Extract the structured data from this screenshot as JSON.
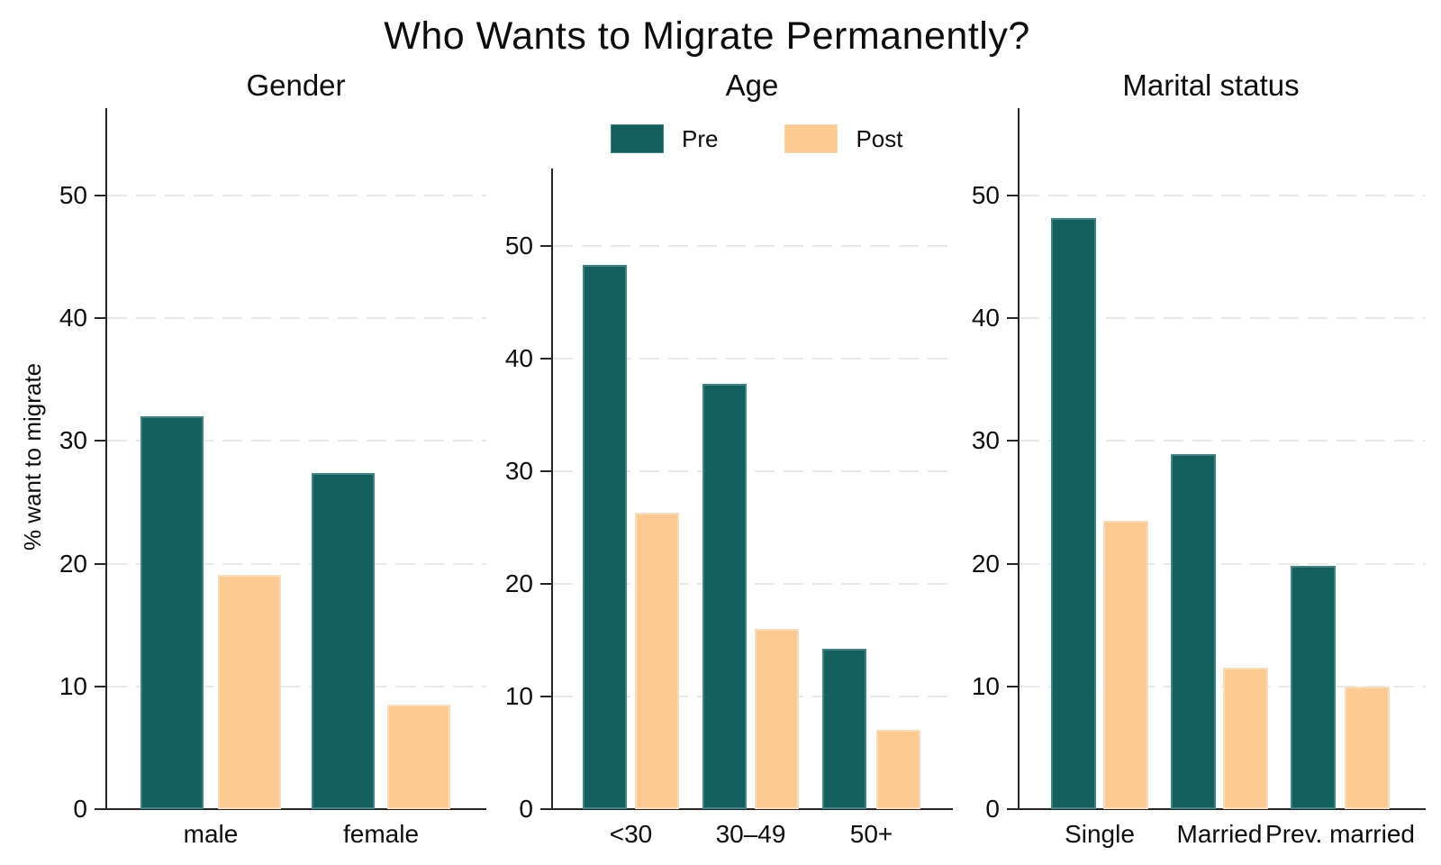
{
  "chart_data": {
    "type": "bar",
    "title": "Who Wants to Migrate Permanently?",
    "ylabel": "% want to migrate",
    "legend_position": "top-center",
    "grid": true,
    "yticks": [
      0,
      10,
      20,
      30,
      40,
      50
    ],
    "ylim": [
      0,
      57
    ],
    "series_names": [
      "Pre",
      "Post"
    ],
    "series_colors": [
      "#14605F",
      "#FDCA92"
    ],
    "grid_color": "#E9E9E9",
    "axis_color": "#262626",
    "panels": [
      {
        "title": "Gender",
        "categories": [
          "male",
          "female"
        ],
        "series": [
          {
            "name": "Pre",
            "values": [
              32.0,
              27.4
            ]
          },
          {
            "name": "Post",
            "values": [
              19.1,
              8.5
            ]
          }
        ]
      },
      {
        "title": "Age",
        "categories": [
          "<30",
          "30–49",
          "50+"
        ],
        "series": [
          {
            "name": "Pre",
            "values": [
              48.3,
              37.8,
              14.2
            ]
          },
          {
            "name": "Post",
            "values": [
              26.3,
              16.0,
              7.0
            ]
          }
        ]
      },
      {
        "title": "Marital status",
        "categories": [
          "Single",
          "Married",
          "Prev. married"
        ],
        "series": [
          {
            "name": "Pre",
            "values": [
              48.2,
              28.9,
              19.8
            ]
          },
          {
            "name": "Post",
            "values": [
              23.5,
              11.5,
              10.0
            ]
          }
        ]
      }
    ]
  }
}
